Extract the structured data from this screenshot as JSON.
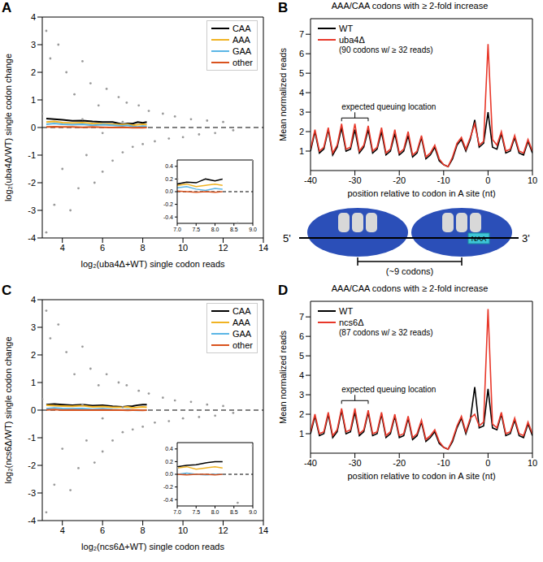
{
  "chart_data": [
    {
      "panel": "A",
      "type": "scatter",
      "xlabel": "log₂(uba4Δ+WT) single codon reads",
      "ylabel": "log₂(uba4Δ/WT) single codon change",
      "xlim": [
        3,
        14
      ],
      "xticks": [
        4,
        6,
        8,
        10,
        12,
        14
      ],
      "ylim": [
        -4,
        4
      ],
      "yticks": [
        -4,
        -3,
        -2,
        -1,
        0,
        1,
        2,
        3,
        4
      ],
      "legend": "upper right",
      "reference_y": 0,
      "points": {
        "color": "#9a9a9a",
        "x": [
          3.2,
          3.2,
          3.4,
          3.6,
          3.8,
          4.0,
          4.2,
          4.4,
          4.6,
          4.8,
          5.0,
          5.2,
          5.4,
          5.6,
          5.8,
          6.0,
          6.2,
          6.5,
          6.8,
          7.0,
          7.2,
          7.5,
          7.8,
          8.0,
          8.3,
          8.6,
          9.0,
          9.3,
          9.6,
          10.0,
          10.4,
          10.8,
          11.2,
          11.6,
          12.0,
          12.5,
          3.0,
          5.0,
          6.0,
          7.0
        ],
        "y": [
          3.5,
          -3.8,
          2.5,
          -2.8,
          3.0,
          -1.5,
          2.0,
          -3.0,
          1.2,
          -2.2,
          2.4,
          -1.0,
          1.6,
          -2.0,
          0.8,
          -1.6,
          1.4,
          -1.2,
          1.1,
          -0.9,
          0.9,
          -0.7,
          0.8,
          -0.6,
          0.6,
          -0.5,
          0.5,
          -0.4,
          0.4,
          -0.35,
          0.3,
          -0.25,
          0.25,
          -0.2,
          0.2,
          -0.1,
          0.5,
          0.3,
          -0.2,
          0.2
        ]
      },
      "x": [
        3.2,
        3.6,
        4,
        4.5,
        5,
        5.5,
        6,
        6.5,
        7,
        7.25,
        7.5,
        7.75,
        8,
        8.2
      ],
      "series": [
        {
          "name": "CAA",
          "color": "#000000",
          "type": "line",
          "values": [
            0.32,
            0.3,
            0.28,
            0.24,
            0.25,
            0.22,
            0.2,
            0.2,
            0.12,
            0.15,
            0.14,
            0.2,
            0.17,
            0.2
          ]
        },
        {
          "name": "AAA",
          "color": "#f0b323",
          "type": "line",
          "values": [
            0.2,
            0.22,
            0.18,
            0.16,
            0.18,
            0.15,
            0.13,
            0.12,
            0.1,
            0.12,
            0.08,
            0.1,
            0.12,
            0.1
          ]
        },
        {
          "name": "GAA",
          "color": "#5bb6e6",
          "type": "line",
          "values": [
            0.12,
            0.15,
            0.12,
            0.1,
            0.12,
            0.08,
            0.1,
            0.08,
            0.06,
            0.08,
            0.04,
            0.02,
            0.05,
            0.04
          ]
        },
        {
          "name": "other",
          "color": "#d9531e",
          "type": "line",
          "values": [
            0.02,
            0.03,
            0.02,
            0.02,
            0.01,
            0.02,
            0.01,
            0.0,
            0.01,
            0.0,
            -0.01,
            0.0,
            -0.01,
            0.0
          ]
        }
      ],
      "inset": {
        "xlim": [
          7,
          9
        ],
        "xticks": [
          {
            "value": 7,
            "label": "7.0"
          },
          7.5,
          {
            "value": 8,
            "label": "8.0"
          },
          8.5,
          {
            "value": 9,
            "label": "9.0"
          }
        ],
        "ylim": [
          -0.5,
          0.5
        ],
        "yticks": [
          -0.4,
          -0.2,
          {
            "value": 0,
            "label": "0.0"
          },
          0.2,
          0.4
        ]
      }
    },
    {
      "panel": "B",
      "type": "line",
      "title": "AAA/CAA codons with ≥ 2-fold increase",
      "xlabel": "position relative to codon in A site (nt)",
      "ylabel": "Mean normalized reads",
      "xlim": [
        -40,
        10
      ],
      "xticks": [
        -40,
        -30,
        -20,
        -10,
        0,
        10
      ],
      "ylim": [
        0,
        7.8
      ],
      "yticks": [
        1,
        2,
        3,
        4,
        5,
        6,
        7
      ],
      "legend": "upper left",
      "legend_note": "(90 codons w/ ≥ 32 reads)",
      "annotation": {
        "text": "expected queuing location",
        "x_range": [
          -33,
          -27
        ],
        "y": 2.7
      },
      "x": [
        -40,
        -39,
        -38,
        -37,
        -36,
        -35,
        -34,
        -33,
        -32,
        -31,
        -30,
        -29,
        -28,
        -27,
        -26,
        -25,
        -24,
        -23,
        -22,
        -21,
        -20,
        -19,
        -18,
        -17,
        -16,
        -15,
        -14,
        -13,
        -12,
        -11,
        -10,
        -9,
        -8,
        -7,
        -6,
        -5,
        -4,
        -3,
        -2,
        -1,
        0,
        1,
        2,
        3,
        4,
        5,
        6,
        7,
        8,
        9,
        10
      ],
      "series": [
        {
          "name": "WT",
          "color": "#000000",
          "values": [
            1.0,
            2.0,
            0.9,
            1.1,
            2.1,
            0.8,
            1.2,
            2.2,
            1.0,
            1.1,
            2.1,
            0.9,
            1.2,
            2.1,
            0.9,
            1.1,
            2.0,
            0.8,
            1.0,
            1.9,
            0.8,
            1.0,
            1.8,
            0.7,
            0.9,
            1.7,
            0.6,
            0.8,
            1.2,
            0.5,
            0.3,
            0.2,
            0.6,
            1.3,
            1.6,
            1.0,
            1.6,
            2.6,
            1.2,
            1.4,
            3.0,
            1.2,
            1.1,
            1.9,
            0.9,
            1.0,
            1.7,
            0.9,
            0.8,
            1.5,
            0.9
          ]
        },
        {
          "name": "uba4Δ",
          "color": "#e8382a",
          "values": [
            1.1,
            2.1,
            1.0,
            1.2,
            2.2,
            0.9,
            1.3,
            2.4,
            1.1,
            1.2,
            2.4,
            1.0,
            1.3,
            2.3,
            1.0,
            1.2,
            2.2,
            0.9,
            1.1,
            2.1,
            0.9,
            1.1,
            2.0,
            0.8,
            1.0,
            1.8,
            0.7,
            0.9,
            1.3,
            0.6,
            0.3,
            0.2,
            0.7,
            1.4,
            1.7,
            1.1,
            1.7,
            2.4,
            1.3,
            1.5,
            6.5,
            1.6,
            1.3,
            2.0,
            1.0,
            1.1,
            1.8,
            1.0,
            0.9,
            1.6,
            1.0
          ]
        }
      ]
    },
    {
      "panel": "C",
      "type": "scatter",
      "xlabel": "log₂(ncs6Δ+WT) single codon reads",
      "ylabel": "log₂(ncs6Δ/WT) single codon change",
      "xlim": [
        3,
        14
      ],
      "xticks": [
        4,
        6,
        8,
        10,
        12,
        14
      ],
      "ylim": [
        -4,
        4
      ],
      "yticks": [
        -4,
        -3,
        -2,
        -1,
        0,
        1,
        2,
        3,
        4
      ],
      "legend": "upper right",
      "reference_y": 0,
      "points": {
        "color": "#9a9a9a",
        "x": [
          3.2,
          3.2,
          3.4,
          3.6,
          3.8,
          4.0,
          4.2,
          4.4,
          4.6,
          4.8,
          5.0,
          5.2,
          5.4,
          5.6,
          5.8,
          6.0,
          6.2,
          6.5,
          6.8,
          7.0,
          7.2,
          7.5,
          7.8,
          8.0,
          8.3,
          8.6,
          9.0,
          9.3,
          9.6,
          10.0,
          10.4,
          10.8,
          11.2,
          11.6,
          12.0,
          12.5,
          3.0,
          5.0,
          6.0,
          7.0
        ],
        "y": [
          3.6,
          -3.7,
          2.6,
          -2.7,
          3.1,
          -1.4,
          2.1,
          -2.9,
          1.3,
          -2.1,
          2.3,
          -1.1,
          1.5,
          -1.9,
          0.9,
          -1.5,
          1.3,
          -1.1,
          1.0,
          -0.8,
          0.9,
          -0.7,
          0.7,
          -0.6,
          0.6,
          -0.45,
          0.45,
          -0.4,
          0.35,
          -0.3,
          0.3,
          -0.25,
          0.2,
          -0.2,
          0.15,
          -0.1,
          0.4,
          0.2,
          -0.3,
          0.1
        ]
      },
      "x": [
        3.2,
        3.6,
        4,
        4.5,
        5,
        5.5,
        6,
        6.5,
        7,
        7.25,
        7.5,
        7.75,
        8,
        8.2
      ],
      "series": [
        {
          "name": "CAA",
          "color": "#000000",
          "type": "line",
          "values": [
            0.2,
            0.22,
            0.2,
            0.18,
            0.2,
            0.16,
            0.18,
            0.14,
            0.12,
            0.14,
            0.15,
            0.18,
            0.2,
            0.2
          ]
        },
        {
          "name": "AAA",
          "color": "#f0b323",
          "type": "line",
          "values": [
            0.18,
            0.16,
            0.15,
            0.14,
            0.16,
            0.12,
            0.13,
            0.1,
            0.1,
            0.12,
            0.08,
            0.1,
            0.12,
            0.1
          ]
        },
        {
          "name": "GAA",
          "color": "#5bb6e6",
          "type": "line",
          "values": [
            0.05,
            0.08,
            0.06,
            0.05,
            0.06,
            0.03,
            0.05,
            0.02,
            0.0,
            0.02,
            0.0,
            -0.01,
            0.0,
            0.0
          ]
        },
        {
          "name": "other",
          "color": "#d9531e",
          "type": "line",
          "values": [
            0.01,
            0.02,
            0.0,
            0.01,
            0.0,
            0.0,
            0.01,
            0.0,
            0.0,
            -0.01,
            0.0,
            0.0,
            -0.01,
            0.0
          ]
        }
      ],
      "inset": {
        "xlim": [
          7,
          9
        ],
        "xticks": [
          {
            "value": 7,
            "label": "7.0"
          },
          7.5,
          {
            "value": 8,
            "label": "8.0"
          },
          8.5,
          {
            "value": 9,
            "label": "9.0"
          }
        ],
        "ylim": [
          -0.5,
          0.5
        ],
        "yticks": [
          -0.4,
          -0.2,
          {
            "value": 0,
            "label": "0.0"
          },
          0.2,
          0.4
        ]
      }
    },
    {
      "panel": "D",
      "type": "line",
      "title": "AAA/CAA codons with ≥ 2-fold increase",
      "xlabel": "position relative to codon in A site (nt)",
      "ylabel": "Mean normalized reads",
      "xlim": [
        -40,
        10
      ],
      "xticks": [
        -40,
        -30,
        -20,
        -10,
        0,
        10
      ],
      "ylim": [
        0,
        7.8
      ],
      "yticks": [
        1,
        2,
        3,
        4,
        5,
        6,
        7
      ],
      "legend": "upper left",
      "legend_note": "(87 codons w/ ≥ 32 reads)",
      "annotation": {
        "text": "expected queuing location",
        "x_range": [
          -33,
          -27
        ],
        "y": 2.7
      },
      "x": [
        -40,
        -39,
        -38,
        -37,
        -36,
        -35,
        -34,
        -33,
        -32,
        -31,
        -30,
        -29,
        -28,
        -27,
        -26,
        -25,
        -24,
        -23,
        -22,
        -21,
        -20,
        -19,
        -18,
        -17,
        -16,
        -15,
        -14,
        -13,
        -12,
        -11,
        -10,
        -9,
        -8,
        -7,
        -6,
        -5,
        -4,
        -3,
        -2,
        -1,
        0,
        1,
        2,
        3,
        4,
        5,
        6,
        7,
        8,
        9,
        10
      ],
      "series": [
        {
          "name": "WT",
          "color": "#000000",
          "values": [
            1.0,
            1.9,
            0.9,
            1.0,
            2.0,
            0.8,
            1.1,
            2.2,
            1.0,
            1.1,
            2.1,
            0.9,
            1.1,
            2.1,
            0.9,
            1.0,
            2.0,
            0.8,
            1.0,
            1.9,
            0.8,
            0.9,
            1.8,
            0.7,
            0.9,
            1.6,
            0.6,
            0.8,
            1.1,
            0.5,
            0.3,
            0.2,
            0.6,
            1.3,
            1.8,
            1.0,
            1.7,
            3.4,
            1.3,
            1.4,
            3.3,
            1.3,
            1.2,
            2.0,
            0.9,
            1.0,
            1.7,
            0.9,
            0.8,
            1.5,
            0.9
          ]
        },
        {
          "name": "ncs6Δ",
          "color": "#e8382a",
          "values": [
            1.1,
            2.0,
            1.0,
            1.1,
            2.1,
            0.9,
            1.2,
            2.3,
            1.1,
            1.2,
            2.3,
            1.0,
            1.2,
            2.2,
            1.0,
            1.1,
            2.1,
            0.9,
            1.1,
            2.0,
            0.9,
            1.0,
            1.9,
            0.8,
            1.0,
            1.7,
            0.7,
            0.9,
            1.2,
            0.6,
            0.3,
            0.2,
            0.7,
            1.4,
            1.9,
            1.1,
            1.8,
            2.0,
            1.4,
            1.6,
            7.4,
            1.5,
            1.3,
            2.1,
            1.0,
            1.1,
            1.8,
            1.0,
            0.9,
            1.6,
            1.0
          ]
        }
      ]
    }
  ],
  "diagram": {
    "five_prime": "5'",
    "three_prime": "3'",
    "codon_label": "NAA",
    "distance": "(~9 codons)"
  }
}
